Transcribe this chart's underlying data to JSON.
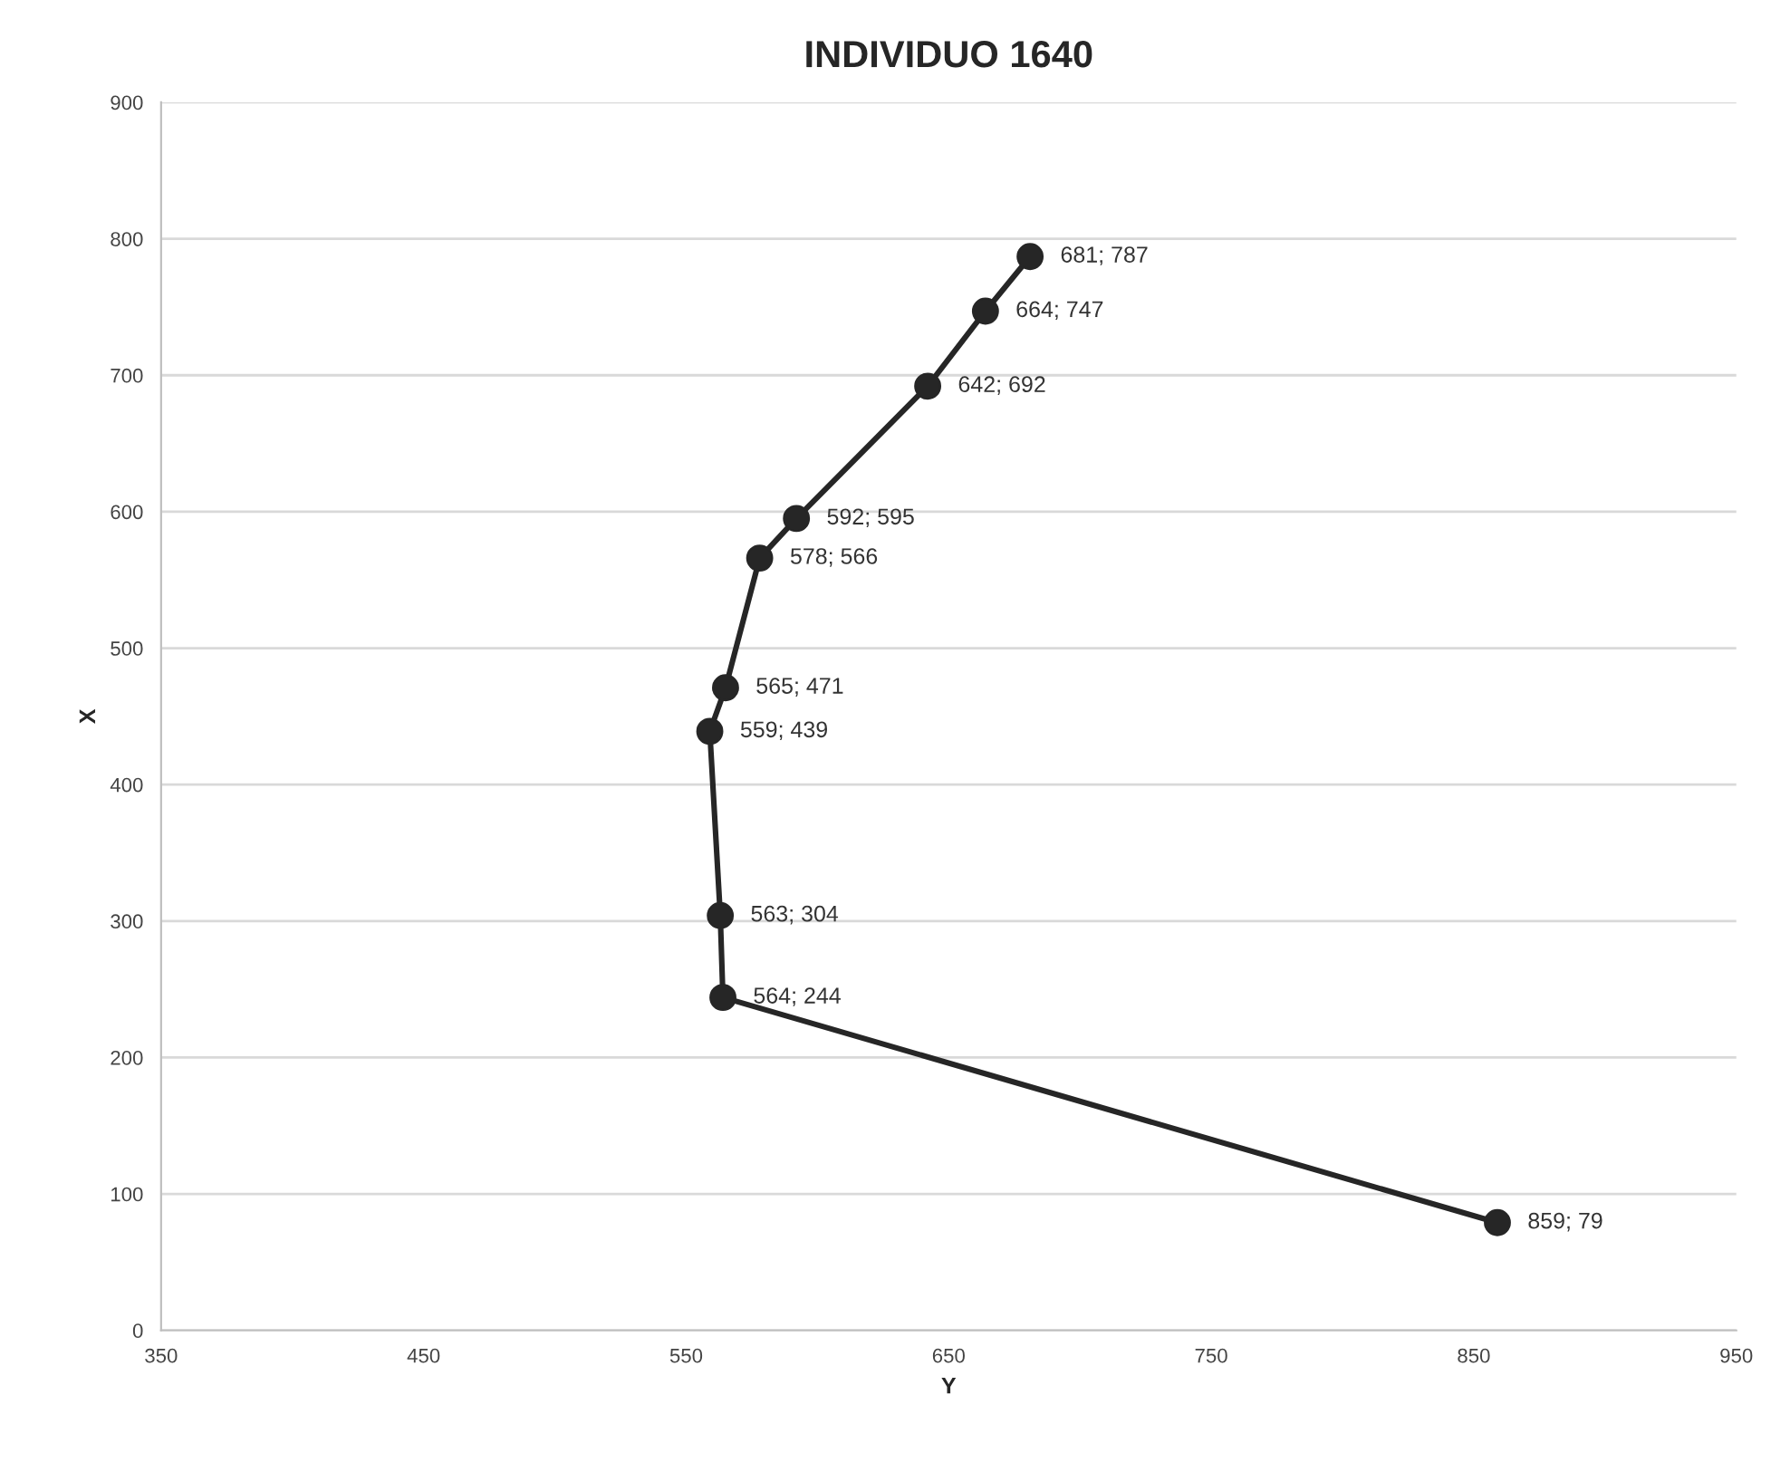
{
  "chart_data": {
    "type": "line",
    "title": "INDIVIDUO 1640",
    "xlabel": "Y",
    "ylabel": "X",
    "series": [
      {
        "color": "#262626",
        "x": [
          681,
          664,
          642,
          592,
          578,
          565,
          559,
          563,
          564,
          859
        ],
        "values": [
          787,
          747,
          692,
          595,
          566,
          471,
          439,
          304,
          244,
          79
        ],
        "value_labels": [
          "681; 787",
          "664; 747",
          "642; 692",
          "592; 595",
          "578; 566",
          "565; 471",
          "559; 439",
          "563; 304",
          "564; 244",
          "859; 79"
        ]
      }
    ],
    "xlim": [
      350,
      950
    ],
    "xticks": [
      350,
      450,
      550,
      650,
      750,
      850,
      950
    ],
    "ylim": [
      0,
      900
    ],
    "yticks": [
      0,
      100,
      200,
      300,
      400,
      500,
      600,
      700,
      800,
      900
    ],
    "grid": "y",
    "marker": "circle",
    "line_style": "solid",
    "legend": false
  }
}
